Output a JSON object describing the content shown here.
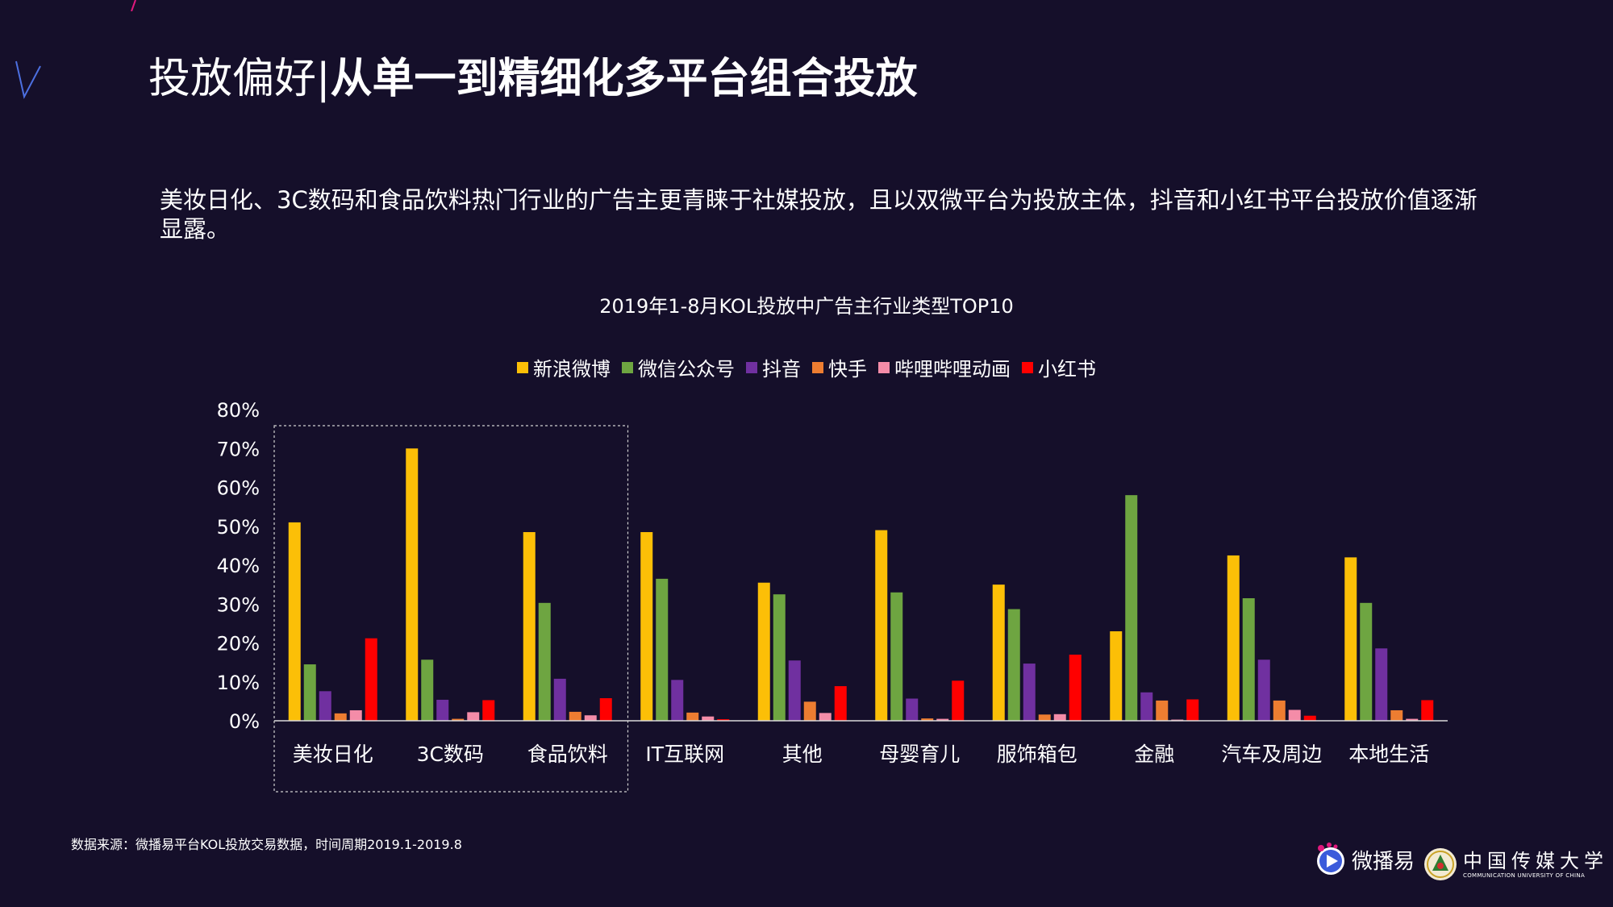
{
  "title": {
    "regular": "投放偏好|",
    "bold": "从单一到精细化多平台组合投放"
  },
  "subtitle": "美妆日化、3C数码和食品饮料热门行业的广告主更青睐于社媒投放，且以双微平台为投放主体，抖音和小红书平台投放价值逐渐显露。",
  "source": "数据来源：微播易平台KOL投放交易数据，时间周期2019.1-2019.8",
  "logos": {
    "weiboyi": "微播易",
    "cuc_cn": "中国传媒大学",
    "cuc_en": "COMMUNICATION UNIVERSITY OF CHINA"
  },
  "colors": {
    "background": "#150f2a",
    "accent": "#e0197d"
  },
  "chart_data": {
    "type": "bar",
    "title": "2019年1-8月KOL投放中广告主行业类型TOP10",
    "categories": [
      "美妆日化",
      "3C数码",
      "食品饮料",
      "IT互联网",
      "其他",
      "母婴育儿",
      "服饰箱包",
      "金融",
      "汽车及周边",
      "本地生活"
    ],
    "ylim": [
      0,
      80
    ],
    "yticks": [
      "0%",
      "10%",
      "20%",
      "30%",
      "40%",
      "50%",
      "60%",
      "70%",
      "80%"
    ],
    "legend_position": "top",
    "highlight": {
      "categories": [
        "美妆日化",
        "3C数码",
        "食品饮料"
      ],
      "style": "dashed-box"
    },
    "series": [
      {
        "name": "新浪微博",
        "color": "#fcbf07",
        "values": [
          51,
          70,
          48.5,
          48.5,
          35.5,
          49,
          35,
          23,
          42.5,
          42
        ]
      },
      {
        "name": "微信公众号",
        "color": "#6ea541",
        "values": [
          14.5,
          15.7,
          30.3,
          36.5,
          32.5,
          33,
          28.7,
          58,
          31.5,
          30.3
        ]
      },
      {
        "name": "抖音",
        "color": "#7030a0",
        "values": [
          7.6,
          5.4,
          10.8,
          10.5,
          15.5,
          5.7,
          14.7,
          7.3,
          15.7,
          18.6
        ]
      },
      {
        "name": "快手",
        "color": "#ed7d31",
        "values": [
          1.9,
          0.5,
          2.3,
          2.1,
          4.9,
          0.6,
          1.6,
          5.2,
          5.2,
          2.7
        ]
      },
      {
        "name": "哔哩哔哩动画",
        "color": "#f48ca8",
        "values": [
          2.7,
          2.2,
          1.4,
          1.1,
          2,
          0.5,
          1.7,
          0.3,
          2.8,
          0.5
        ]
      },
      {
        "name": "小红书",
        "color": "#ff0000",
        "values": [
          21.2,
          5.3,
          5.8,
          0.4,
          8.9,
          10.3,
          17,
          5.5,
          1.3,
          5.3
        ]
      }
    ]
  }
}
